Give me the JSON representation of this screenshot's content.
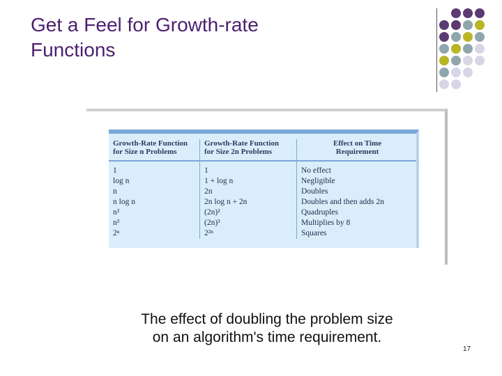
{
  "slide": {
    "title_line1": "Get a Feel for Growth-rate",
    "title_line2": "Functions",
    "caption_line1": "The effect of doubling the problem size",
    "caption_line2": "on an algorithm's time requirement.",
    "page_number": "17"
  },
  "colors": {
    "title": "#4b1f6f",
    "dot_purple": "#5b3a72",
    "dot_gray": "#8fa6ad",
    "dot_olive": "#b9b524",
    "dot_lavender": "#d8d6e6"
  },
  "table": {
    "headers": [
      [
        "Growth-Rate Function",
        "for Size n Problems"
      ],
      [
        "Growth-Rate Function",
        "for Size 2n Problems"
      ],
      [
        "Effect on Time",
        "Requirement"
      ]
    ],
    "col1": [
      "1",
      "log n",
      "n",
      "n log n",
      "n²",
      "n³",
      "2ⁿ"
    ],
    "col2": [
      "1",
      "1 + log n",
      "2n",
      "2n log n + 2n",
      "(2n)²",
      "(2n)³",
      "2²ⁿ"
    ],
    "col3": [
      "No effect",
      "Negligible",
      "Doubles",
      "Doubles and then adds 2n",
      "Quadruples",
      "Multiplies by 8",
      "Squares"
    ]
  }
}
